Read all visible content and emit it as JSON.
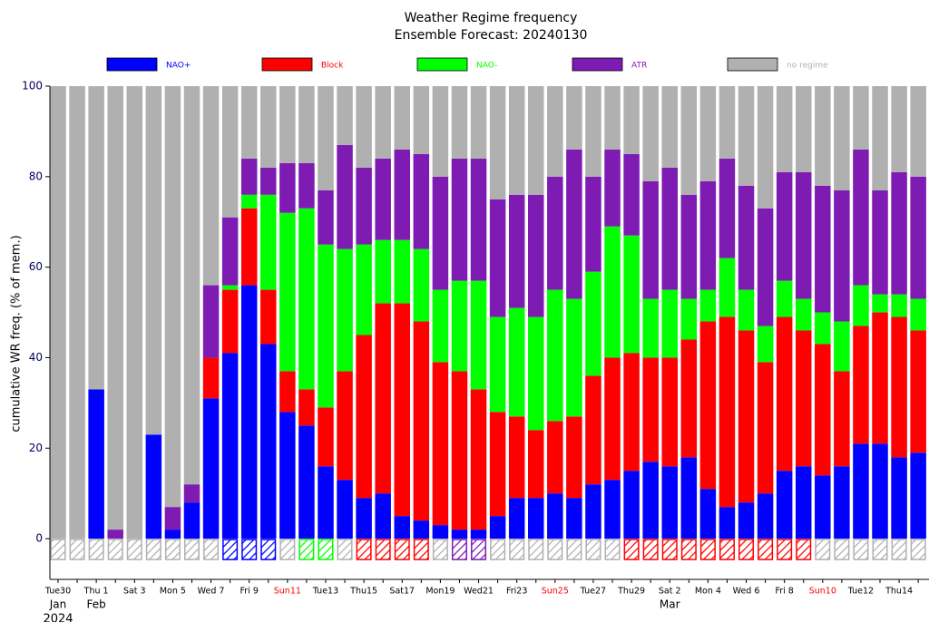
{
  "chart_data": {
    "type": "stacked_bar",
    "title": "Weather Regime frequency",
    "subtitle": "Ensemble Forecast: 20240130",
    "y_label": "cumulative WR freq. (% of mem.)",
    "categories": [
      "Tue30",
      null,
      "Thu 1",
      null,
      "Sat 3",
      null,
      "Mon 5",
      null,
      "Wed 7",
      null,
      "Fri 9",
      null,
      "Sun11",
      null,
      "Tue13",
      null,
      "Thu15",
      null,
      "Sat17",
      null,
      "Mon19",
      null,
      "Wed21",
      null,
      "Fri23",
      null,
      "Sun25",
      null,
      "Tue27",
      null,
      "Thu29",
      null,
      "Sat 2",
      null,
      "Mon 4",
      null,
      "Wed 6",
      null,
      "Fri 8",
      null,
      "Sun10",
      null,
      "Tue12",
      null,
      "Thu14",
      null
    ],
    "months": [
      {
        "label": "Jan",
        "at": 0
      },
      {
        "label": "Feb",
        "at": 2
      },
      {
        "label": "Mar",
        "at": 32
      }
    ],
    "year": "2024",
    "weekend_label_color": "#ff0000",
    "series": [
      {
        "name": "NAO+",
        "color": "#0000ff",
        "values": [
          0,
          0,
          33,
          0,
          0,
          23,
          2,
          8,
          31,
          41,
          56,
          43,
          28,
          25,
          16,
          13,
          9,
          10,
          5,
          4,
          3,
          2,
          2,
          5,
          9,
          9,
          10,
          9,
          12,
          13,
          15,
          17,
          16,
          18,
          11,
          7,
          8,
          10,
          15,
          16,
          14,
          16,
          21,
          21,
          18,
          19
        ]
      },
      {
        "name": "Block",
        "color": "#ff0000",
        "values": [
          0,
          0,
          0,
          0,
          0,
          0,
          0,
          0,
          9,
          14,
          17,
          12,
          9,
          8,
          13,
          24,
          36,
          42,
          47,
          44,
          36,
          35,
          31,
          23,
          18,
          15,
          16,
          18,
          24,
          27,
          26,
          23,
          24,
          26,
          37,
          42,
          38,
          29,
          34,
          30,
          29,
          21,
          26,
          29,
          31,
          27
        ]
      },
      {
        "name": "NAO-",
        "color": "#00ff00",
        "values": [
          0,
          0,
          0,
          0,
          0,
          0,
          0,
          0,
          0,
          1,
          3,
          21,
          35,
          40,
          36,
          27,
          20,
          14,
          14,
          16,
          16,
          20,
          24,
          21,
          24,
          25,
          29,
          26,
          23,
          29,
          26,
          13,
          15,
          9,
          7,
          13,
          9,
          8,
          8,
          7,
          7,
          11,
          9,
          4,
          5,
          7
        ]
      },
      {
        "name": "ATR",
        "color": "#7d1bb3",
        "values": [
          0,
          0,
          0,
          2,
          0,
          0,
          5,
          4,
          16,
          15,
          8,
          6,
          11,
          10,
          12,
          23,
          17,
          18,
          20,
          21,
          25,
          27,
          27,
          26,
          25,
          27,
          25,
          33,
          21,
          17,
          18,
          26,
          27,
          23,
          24,
          22,
          23,
          26,
          24,
          28,
          28,
          29,
          30,
          23,
          27,
          27
        ]
      },
      {
        "name": "no regime",
        "color": "#b0b0b0",
        "values": [
          100,
          100,
          67,
          98,
          100,
          77,
          93,
          88,
          44,
          29,
          16,
          18,
          17,
          17,
          23,
          13,
          18,
          16,
          14,
          15,
          20,
          16,
          16,
          25,
          24,
          24,
          20,
          14,
          20,
          14,
          15,
          21,
          18,
          24,
          21,
          16,
          22,
          27,
          19,
          19,
          22,
          23,
          14,
          23,
          19,
          20
        ]
      }
    ],
    "dominant_regime": [
      4,
      4,
      4,
      4,
      4,
      4,
      4,
      4,
      4,
      0,
      0,
      0,
      4,
      2,
      2,
      4,
      1,
      1,
      1,
      1,
      4,
      3,
      3,
      4,
      4,
      4,
      4,
      4,
      4,
      4,
      1,
      1,
      1,
      1,
      1,
      1,
      1,
      1,
      1,
      1,
      4,
      4,
      4,
      4,
      4,
      4
    ],
    "ylim": [
      -9,
      100
    ],
    "yticks": [
      0,
      20,
      40,
      60,
      80,
      100
    ],
    "tick_color": "#00005a"
  }
}
